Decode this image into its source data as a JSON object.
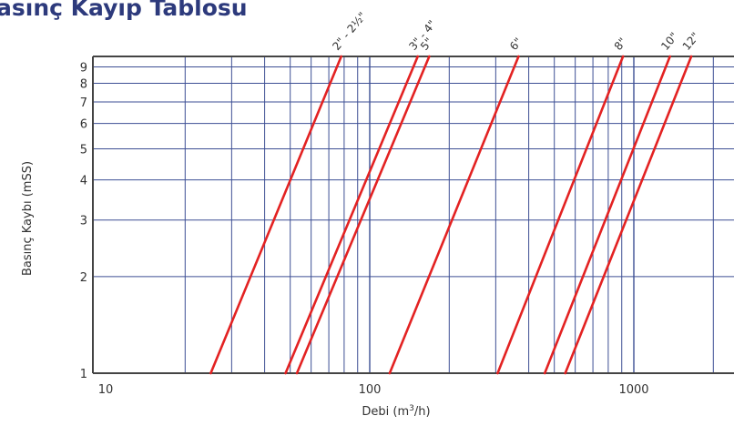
{
  "title": "asınç Kayıp Tablosu",
  "chart_data": {
    "type": "line",
    "title": "asınç Kayıp Tablosu",
    "xlabel": "Debi (m³/h)",
    "ylabel": "Basınç Kaybı (mSS)",
    "xscale": "log",
    "yscale": "log",
    "xlim": [
      10,
      2000
    ],
    "ylim": [
      1,
      9.7
    ],
    "xticks": [
      {
        "value": 10,
        "label": "10"
      },
      {
        "value": 100,
        "label": "100"
      },
      {
        "value": 1000,
        "label": "1000"
      }
    ],
    "yticks": [
      {
        "value": 1,
        "label": "1"
      },
      {
        "value": 2,
        "label": "2"
      },
      {
        "value": 3,
        "label": "3"
      },
      {
        "value": 4,
        "label": "4"
      },
      {
        "value": 5,
        "label": "5"
      },
      {
        "value": 6,
        "label": "6"
      },
      {
        "value": 7,
        "label": "7"
      },
      {
        "value": 8,
        "label": "8"
      },
      {
        "value": 9,
        "label": "9"
      }
    ],
    "grid": true,
    "series_color": "#e32222",
    "series": [
      {
        "name": "2\" - 2½\"",
        "x": [
          25,
          78
        ],
        "y": [
          1,
          9.7
        ]
      },
      {
        "name": "3\" - 4\"",
        "x": [
          48,
          152
        ],
        "y": [
          1,
          9.7
        ]
      },
      {
        "name": "5\"",
        "x": [
          53,
          168
        ],
        "y": [
          1,
          9.7
        ]
      },
      {
        "name": "6\"",
        "x": [
          119,
          366
        ],
        "y": [
          1,
          9.7
        ]
      },
      {
        "name": "8\"",
        "x": [
          305,
          910
        ],
        "y": [
          1,
          9.7
        ]
      },
      {
        "name": "10\"",
        "x": [
          460,
          1370
        ],
        "y": [
          1,
          9.7
        ]
      },
      {
        "name": "12\"",
        "x": [
          550,
          1650
        ],
        "y": [
          1,
          9.7
        ]
      }
    ]
  },
  "colors": {
    "title": "#2d3a7c",
    "grid": "#3d4f94",
    "axis": "#444444",
    "series": "#e32222"
  }
}
